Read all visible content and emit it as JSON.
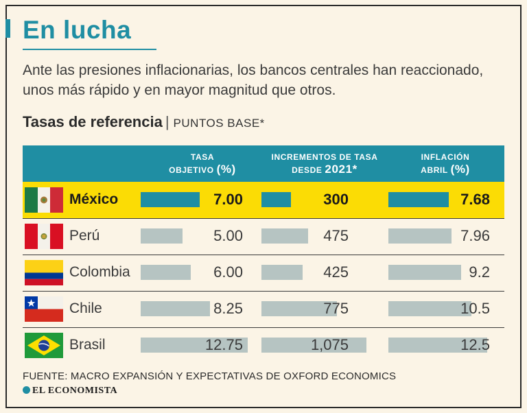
{
  "header": {
    "title": "En lucha",
    "subtitle": "Ante las presiones inflacionarias, los bancos centrales han reaccionado, unos más rápido y en mayor magnitud que otros."
  },
  "chart_heading": {
    "title": "Tasas de referencia",
    "separator": "|",
    "unit": "PUNTOS BASE*"
  },
  "columns": [
    {
      "line1": "TASA",
      "line2": "OBJETIVO",
      "line2_big": "(%)"
    },
    {
      "line1": "INCREMENTOS DE TASA",
      "line2": "DESDE",
      "line2_big": "2021*"
    },
    {
      "line1": "INFLACIÓN",
      "line2": "ABRIL",
      "line2_big": "(%)"
    }
  ],
  "colors": {
    "accent": "#1f8ea3",
    "highlight_row": "#fbdc05",
    "bar_highlight": "#1f8ea3",
    "bar_default": "#b6c4c2",
    "background": "#fbf4e6"
  },
  "chart_data": {
    "type": "table",
    "title": "Tasas de referencia",
    "subtitle": "PUNTOS BASE*",
    "categories": [
      "México",
      "Perú",
      "Colombia",
      "Chile",
      "Brasil"
    ],
    "highlight": "México",
    "series": [
      {
        "name": "TASA OBJETIVO (%)",
        "values": [
          7.0,
          5.0,
          6.0,
          8.25,
          12.75
        ],
        "labels": [
          "7.00",
          "5.00",
          "6.00",
          "8.25",
          "12.75"
        ],
        "max": 12.75
      },
      {
        "name": "INCREMENTOS DE TASA DESDE 2021*",
        "values": [
          300,
          475,
          425,
          775,
          1075
        ],
        "labels": [
          "300",
          "475",
          "425",
          "775",
          "1,075"
        ],
        "max": 1075
      },
      {
        "name": "INFLACIÓN ABRIL (%)",
        "values": [
          7.68,
          7.96,
          9.2,
          10.5,
          12.5
        ],
        "labels": [
          "7.68",
          "7.96",
          "9.2",
          "10.5",
          "12.5"
        ],
        "max": 12.5
      }
    ]
  },
  "rows": [
    {
      "country": "México",
      "flag": "mexico-flag-icon"
    },
    {
      "country": "Perú",
      "flag": "peru-flag-icon"
    },
    {
      "country": "Colombia",
      "flag": "colombia-flag-icon"
    },
    {
      "country": "Chile",
      "flag": "chile-flag-icon"
    },
    {
      "country": "Brasil",
      "flag": "brazil-flag-icon"
    }
  ],
  "footer": {
    "source": "FUENTE: MACRO EXPANSIÓN Y EXPECTATIVAS DE OXFORD ECONOMICS",
    "brand": "EL ECONOMISTA"
  }
}
